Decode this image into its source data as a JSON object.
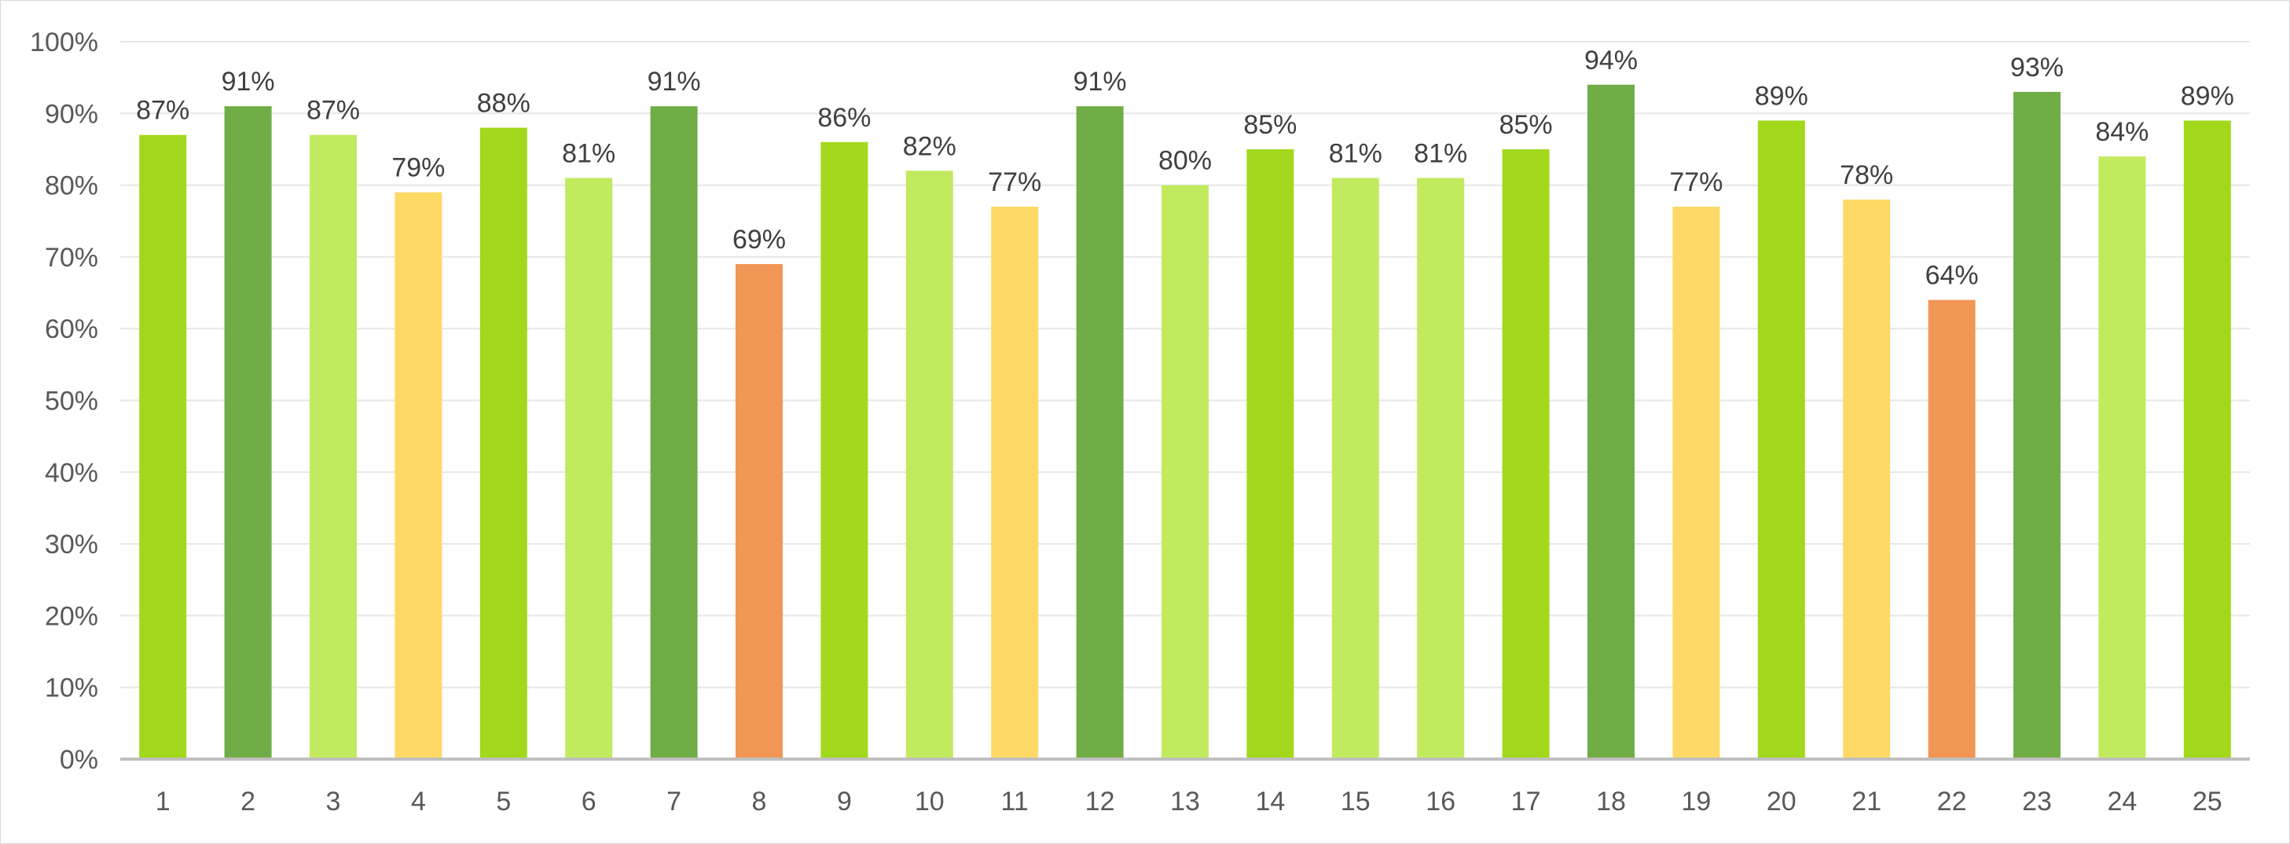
{
  "chart_data": {
    "type": "bar",
    "title": "",
    "xlabel": "",
    "ylabel": "",
    "categories": [
      "1",
      "2",
      "3",
      "4",
      "5",
      "6",
      "7",
      "8",
      "9",
      "10",
      "11",
      "12",
      "13",
      "14",
      "15",
      "16",
      "17",
      "18",
      "19",
      "20",
      "21",
      "22",
      "23",
      "24",
      "25"
    ],
    "values": [
      0.87,
      0.91,
      0.87,
      0.79,
      0.88,
      0.81,
      0.91,
      0.69,
      0.86,
      0.82,
      0.77,
      0.91,
      0.8,
      0.85,
      0.81,
      0.81,
      0.85,
      0.94,
      0.77,
      0.89,
      0.78,
      0.64,
      0.93,
      0.84,
      0.89
    ],
    "data_labels": [
      "87%",
      "91%",
      "87%",
      "79%",
      "88%",
      "81%",
      "91%",
      "69%",
      "86%",
      "82%",
      "77%",
      "91%",
      "80%",
      "85%",
      "81%",
      "81%",
      "85%",
      "94%",
      "77%",
      "89%",
      "78%",
      "64%",
      "93%",
      "84%",
      "89%"
    ],
    "bar_colors": [
      "#a2d91c",
      "#70ad47",
      "#c2ea5e",
      "#ffd966",
      "#a2d91c",
      "#c2ea5e",
      "#70ad47",
      "#f29655",
      "#a2d91c",
      "#c2ea5e",
      "#ffd966",
      "#70ad47",
      "#c2ea5e",
      "#a2d91c",
      "#c2ea5e",
      "#c2ea5e",
      "#a2d91c",
      "#70ad47",
      "#ffd966",
      "#a2d91c",
      "#ffd966",
      "#f29655",
      "#70ad47",
      "#c2ea5e",
      "#a2d91c"
    ],
    "ylim": [
      0,
      1
    ],
    "y_ticks": [
      0,
      0.1,
      0.2,
      0.3,
      0.4,
      0.5,
      0.6,
      0.7,
      0.8,
      0.9,
      1.0
    ],
    "y_tick_labels": [
      "0%",
      "10%",
      "20%",
      "30%",
      "40%",
      "50%",
      "60%",
      "70%",
      "80%",
      "90%",
      "100%"
    ],
    "grid": true,
    "legend": "none",
    "colors": {
      "gridline": "#e7e7e7",
      "axis": "#bfbfbf",
      "tick_text": "#595959",
      "label_text": "#404040"
    }
  }
}
